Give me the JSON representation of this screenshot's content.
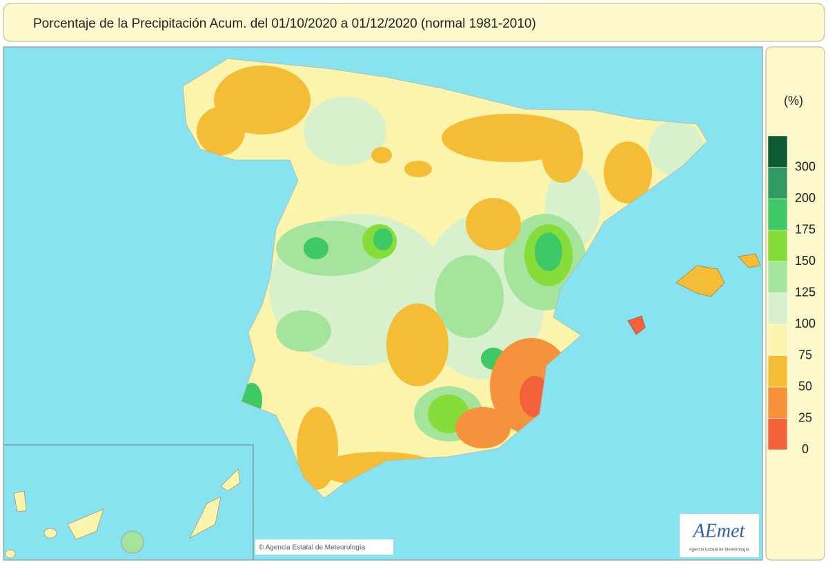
{
  "header": {
    "title": "Porcentaje de la Precipitación Acum. del 01/10/2020 a  01/12/2020  (normal 1981-2010)"
  },
  "legend": {
    "unit": "(%)",
    "ticks": [
      0,
      25,
      50,
      75,
      100,
      125,
      150,
      175,
      200,
      300
    ],
    "colors": [
      "#f4623c",
      "#f6923c",
      "#f5bd35",
      "#fbf4ad",
      "#d8f1cd",
      "#a5e49c",
      "#86dc38",
      "#3fc866",
      "#2f9a62",
      "#0d5c34"
    ]
  },
  "credits": {
    "copyright": "© Agencia Estatal de Meteorología",
    "logo": "AEmet",
    "logo_caption": "Agencia Estatal de Meteorología"
  }
}
